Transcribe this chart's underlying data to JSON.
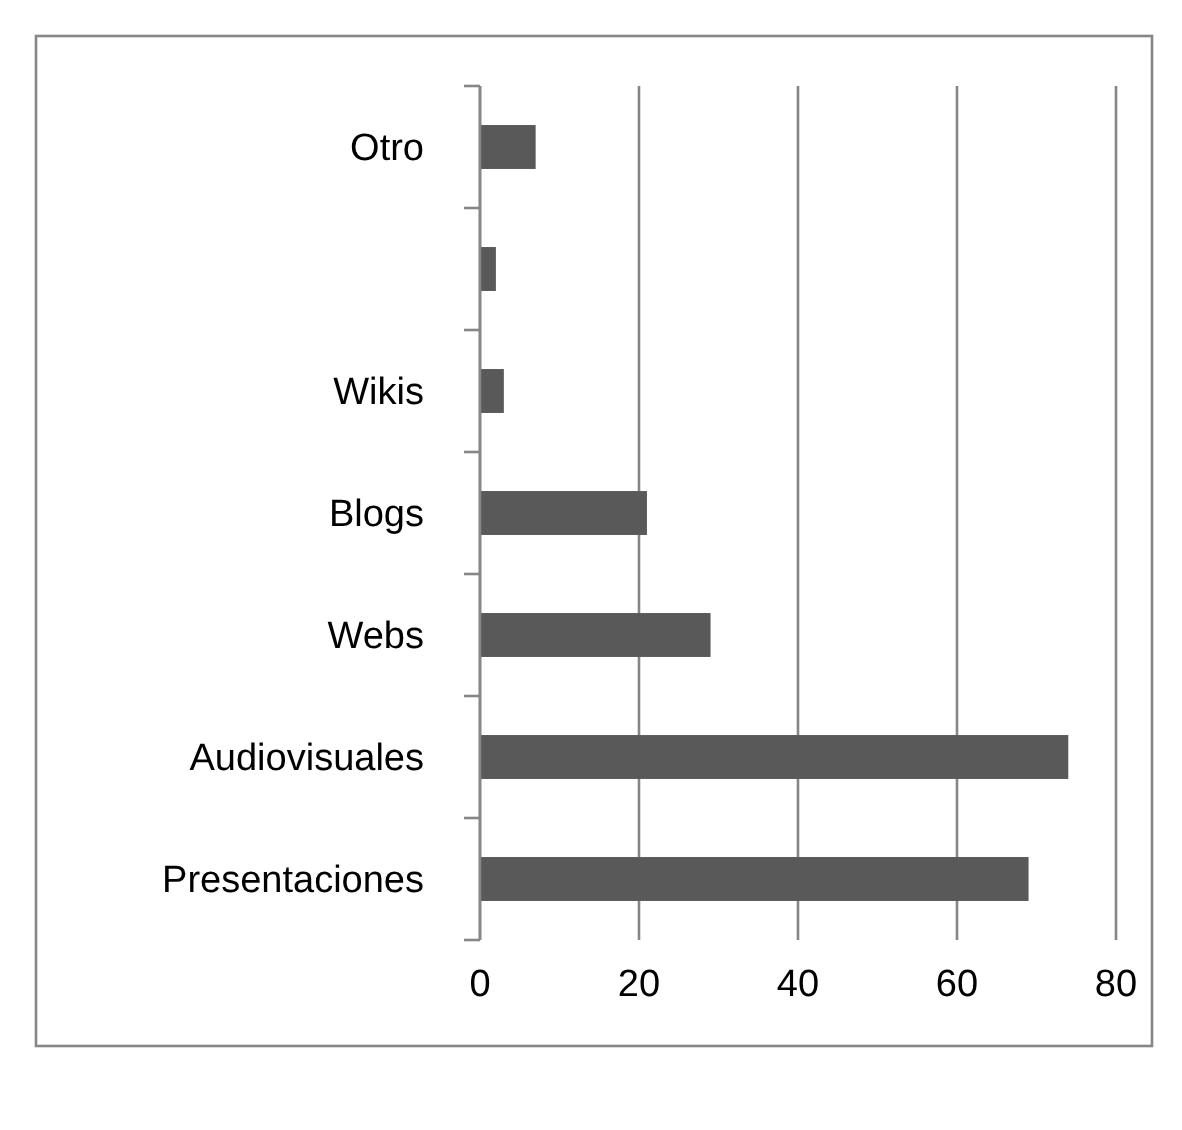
{
  "chart_data": {
    "type": "bar",
    "orientation": "horizontal",
    "categories": [
      "Otro",
      null,
      "Wikis",
      "Blogs",
      "Webs",
      "Audiovisuales",
      "Presentaciones"
    ],
    "values": [
      7,
      2,
      3,
      21,
      29,
      74,
      69
    ],
    "color": "#595959",
    "xlim": [
      0,
      80
    ],
    "xticks": [
      0,
      20,
      40,
      60,
      80
    ],
    "grid": "x"
  }
}
